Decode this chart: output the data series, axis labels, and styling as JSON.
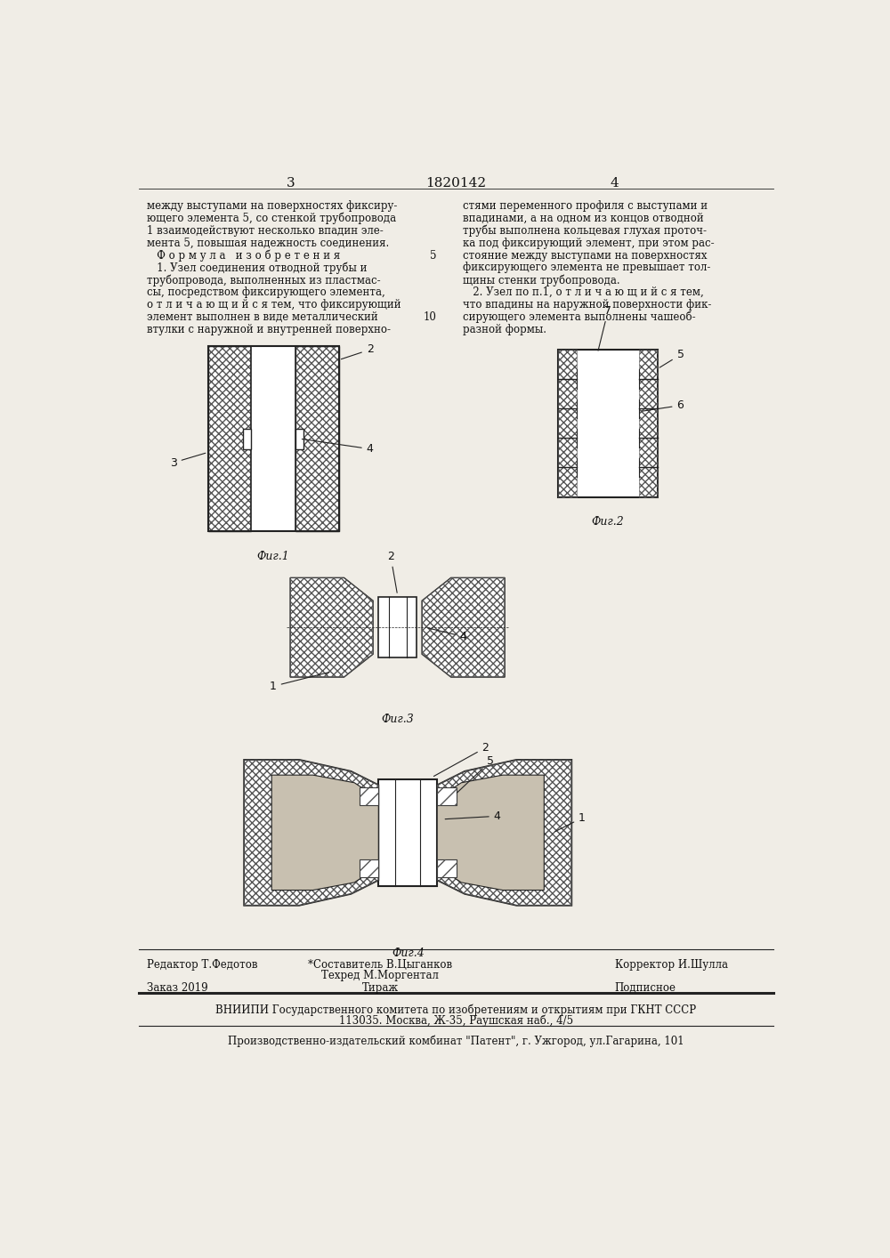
{
  "page_color": "#f0ede6",
  "title_number": "1820142",
  "page_left": "3",
  "page_right": "4",
  "left_col_text": [
    "между выступами на поверхностях фиксиру-",
    "ющего элемента 5, со стенкой трубопровода",
    "1 взаимодействуют несколько впадин эле-",
    "мента 5, повышая надежность соединения.",
    "   Ф о р м у л а   и з о б р е т е н и я",
    "   1. Узел соединения отводной трубы и",
    "трубопровода, выполненных из пластмас-",
    "сы, посредством фиксирующего элемента,",
    "о т л и ч а ю щ и й с я тем, что фиксирующий",
    "элемент выполнен в виде металлический",
    "втулки с наружной и внутренней поверхно-"
  ],
  "line_number_5": "5",
  "line_number_10": "10",
  "right_col_text": [
    "стями переменного профиля с выступами и",
    "впадинами, а на одном из концов отводной",
    "трубы выполнена кольцевая глухая проточ-",
    "ка под фиксирующий элемент, при этом рас-",
    "стояние между выступами на поверхностях",
    "фиксирующего элемента не превышает тол-",
    "щины стенки трубопровода.",
    "   2. Узел по п.1, о т л и ч а ю щ и й с я тем,",
    "что впадины на наружной поверхности фик-",
    "сирующего элемента выполнены чашеоб-",
    "разной формы."
  ],
  "fig1_label": "Фиг.1",
  "fig2_label": "Фиг.2",
  "fig3_label": "Фиг.3",
  "fig4_label": "Фиг.4",
  "editor_line": "Редактор Т.Федотов",
  "composer_line": "*Составитель В.Цыганков",
  "corrector_line": "Корректор И.Шулла",
  "techred_line": "Техред М.Моргентал",
  "order_line": "Заказ 2019",
  "tirazh_line": "Тираж",
  "podpisnoe_line": "Подписное",
  "vniipи_line": "ВНИИПИ Государственного комитета по изобретениям и открытиям при ГКНТ СССР",
  "address_line": "113035. Москва, Ж-35, Раушская наб., 4/5",
  "production_line": "Производственно-издательский комбинат \"Патент\", г. Ужгород, ул.Гагарина, 101",
  "hatch_color": "#555555",
  "line_color": "#222222",
  "text_color": "#111111"
}
